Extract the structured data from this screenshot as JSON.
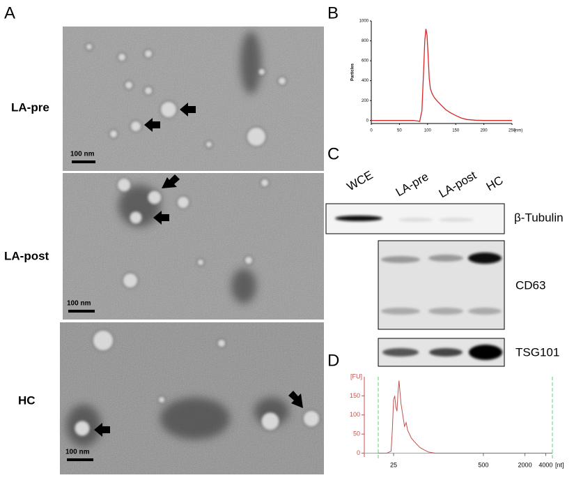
{
  "panel_labels": [
    "A",
    "B",
    "C",
    "D"
  ],
  "tem": {
    "rows": [
      {
        "label": "LA-pre",
        "scale_bar": "100 nm"
      },
      {
        "label": "LA-post",
        "scale_bar": "100 nm"
      },
      {
        "label": "HC",
        "scale_bar": "100 nm"
      }
    ]
  },
  "blot": {
    "lanes": [
      "WCE",
      "LA-pre",
      "LA-post",
      "HC"
    ],
    "markers": [
      "β-Tubulin",
      "CD63",
      "TSG101"
    ]
  },
  "chart_data": [
    {
      "type": "line",
      "y_label": "Particles",
      "x_label": "(nm)",
      "color": "#d62728",
      "x": [
        0,
        20,
        40,
        60,
        75,
        82,
        86,
        90,
        93,
        95,
        97,
        99,
        101,
        103,
        105,
        108,
        112,
        118,
        125,
        132,
        140,
        150,
        160,
        170,
        185,
        200,
        225,
        250
      ],
      "values": [
        0,
        0,
        0,
        0,
        0,
        -5,
        -10,
        100,
        500,
        800,
        920,
        860,
        650,
        420,
        320,
        270,
        230,
        190,
        150,
        110,
        80,
        50,
        25,
        10,
        3,
        0,
        0,
        0
      ],
      "xlim": [
        0,
        250
      ],
      "ylim": [
        -30,
        1000
      ],
      "xticks": [
        0,
        50,
        100,
        150,
        200,
        250
      ],
      "yticks": [
        0,
        200,
        400,
        600,
        800,
        1000
      ]
    },
    {
      "type": "line",
      "y_label": "[FU]",
      "x_label": "[nt]",
      "color": "#c0504d",
      "log_x": true,
      "x": [
        15,
        20,
        23,
        24,
        25,
        26,
        27,
        28,
        29,
        30,
        32,
        34,
        36,
        38,
        40,
        45,
        50,
        60,
        70,
        80,
        100,
        150,
        300,
        1000,
        5000
      ],
      "values": [
        0,
        0,
        5,
        60,
        140,
        150,
        120,
        110,
        160,
        190,
        130,
        100,
        70,
        80,
        60,
        40,
        30,
        15,
        8,
        3,
        0,
        0,
        0,
        0,
        0
      ],
      "xlim": [
        15,
        5000
      ],
      "ylim": [
        -10,
        200
      ],
      "xticks": [
        25,
        500,
        2000,
        4000
      ],
      "yticks": [
        0,
        50,
        100,
        150
      ]
    }
  ]
}
